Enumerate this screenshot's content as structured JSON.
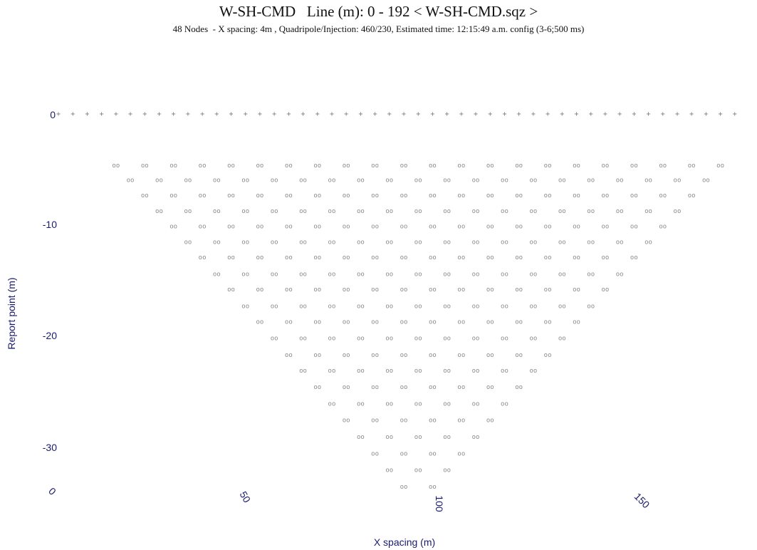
{
  "header": {
    "title": "W-SH-CMD   Line (m): 0 - 192 < W-SH-CMD.sqz >",
    "subtitle": "48 Nodes  - X spacing: 4m , Quadripole/Injection: 460/230, Estimated time: 12:15:49 a.m. config (3-6;500 ms)"
  },
  "colors": {
    "axis_text": "#1a1a6e",
    "points": "#8a8a8a",
    "electrodes": "#7a7a7a"
  },
  "chart_data": {
    "type": "scatter",
    "title": "W-SH-CMD   Line (m): 0 - 192 < W-SH-CMD.sqz >",
    "xlabel": "X spacing (m)",
    "ylabel": "Report point (m)",
    "xlim": [
      0,
      192
    ],
    "ylim": [
      -34,
      0
    ],
    "x_ticks": [
      "0",
      "50",
      "100",
      "150"
    ],
    "y_ticks": [
      "0",
      "-10",
      "-20",
      "-30"
    ],
    "electrodes": {
      "marker": "+",
      "count": 48,
      "spacing": 4,
      "y": 0
    },
    "marker": "oo",
    "rows": [
      {
        "depth": -4.7,
        "x_start": 16,
        "x_end": 184,
        "step": 8
      },
      {
        "depth": -6.0,
        "x_start": 20,
        "x_end": 180,
        "step": 8
      },
      {
        "depth": -7.4,
        "x_start": 24,
        "x_end": 176,
        "step": 8
      },
      {
        "depth": -8.8,
        "x_start": 28,
        "x_end": 172,
        "step": 8
      },
      {
        "depth": -10.2,
        "x_start": 32,
        "x_end": 168,
        "step": 8
      },
      {
        "depth": -11.6,
        "x_start": 36,
        "x_end": 164,
        "step": 8
      },
      {
        "depth": -13.0,
        "x_start": 40,
        "x_end": 160,
        "step": 8
      },
      {
        "depth": -14.5,
        "x_start": 44,
        "x_end": 156,
        "step": 8
      },
      {
        "depth": -15.9,
        "x_start": 48,
        "x_end": 152,
        "step": 8
      },
      {
        "depth": -17.4,
        "x_start": 52,
        "x_end": 148,
        "step": 8
      },
      {
        "depth": -18.8,
        "x_start": 56,
        "x_end": 144,
        "step": 8
      },
      {
        "depth": -20.3,
        "x_start": 60,
        "x_end": 140,
        "step": 8
      },
      {
        "depth": -21.8,
        "x_start": 64,
        "x_end": 136,
        "step": 8
      },
      {
        "depth": -23.2,
        "x_start": 68,
        "x_end": 132,
        "step": 8
      },
      {
        "depth": -24.7,
        "x_start": 72,
        "x_end": 128,
        "step": 8
      },
      {
        "depth": -26.2,
        "x_start": 76,
        "x_end": 124,
        "step": 8
      },
      {
        "depth": -27.7,
        "x_start": 80,
        "x_end": 120,
        "step": 8
      },
      {
        "depth": -29.2,
        "x_start": 84,
        "x_end": 116,
        "step": 8
      },
      {
        "depth": -30.7,
        "x_start": 88,
        "x_end": 112,
        "step": 8
      },
      {
        "depth": -32.2,
        "x_start": 92,
        "x_end": 108,
        "step": 8
      },
      {
        "depth": -33.7,
        "x_start": 96,
        "x_end": 104,
        "step": 8
      }
    ]
  }
}
